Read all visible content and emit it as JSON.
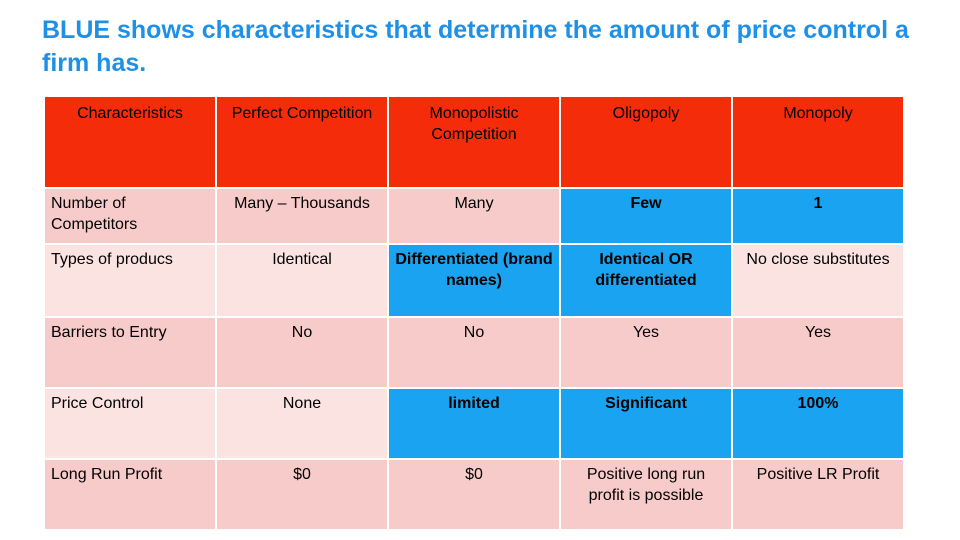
{
  "title": "BLUE shows characteristics that determine the amount of price control a firm has.",
  "table": {
    "headers": [
      "Characteristics",
      "Perfect Competition",
      "Monopolistic Competition",
      "Oligopoly",
      "Monopoly"
    ],
    "rows": [
      [
        "Number of Competitors",
        "Many – Thousands",
        "Many",
        "Few",
        "1"
      ],
      [
        "Types of producs",
        "Identical",
        "Differentiated (brand names)",
        "Identical OR differentiated",
        "No close substitutes"
      ],
      [
        "Barriers to Entry",
        "No",
        "No",
        "Yes",
        "Yes"
      ],
      [
        "Price Control",
        "None",
        "limited",
        "Significant",
        "100%"
      ],
      [
        "Long Run Profit",
        "$0",
        "$0",
        "Positive long run profit is possible",
        "Positive LR Profit"
      ]
    ]
  },
  "colors": {
    "title": "#1e90e6",
    "header": "#f52c0a",
    "pink": "#f8cbcb",
    "light_pink": "#fbe3e2",
    "blue": "#1aa3f0"
  }
}
